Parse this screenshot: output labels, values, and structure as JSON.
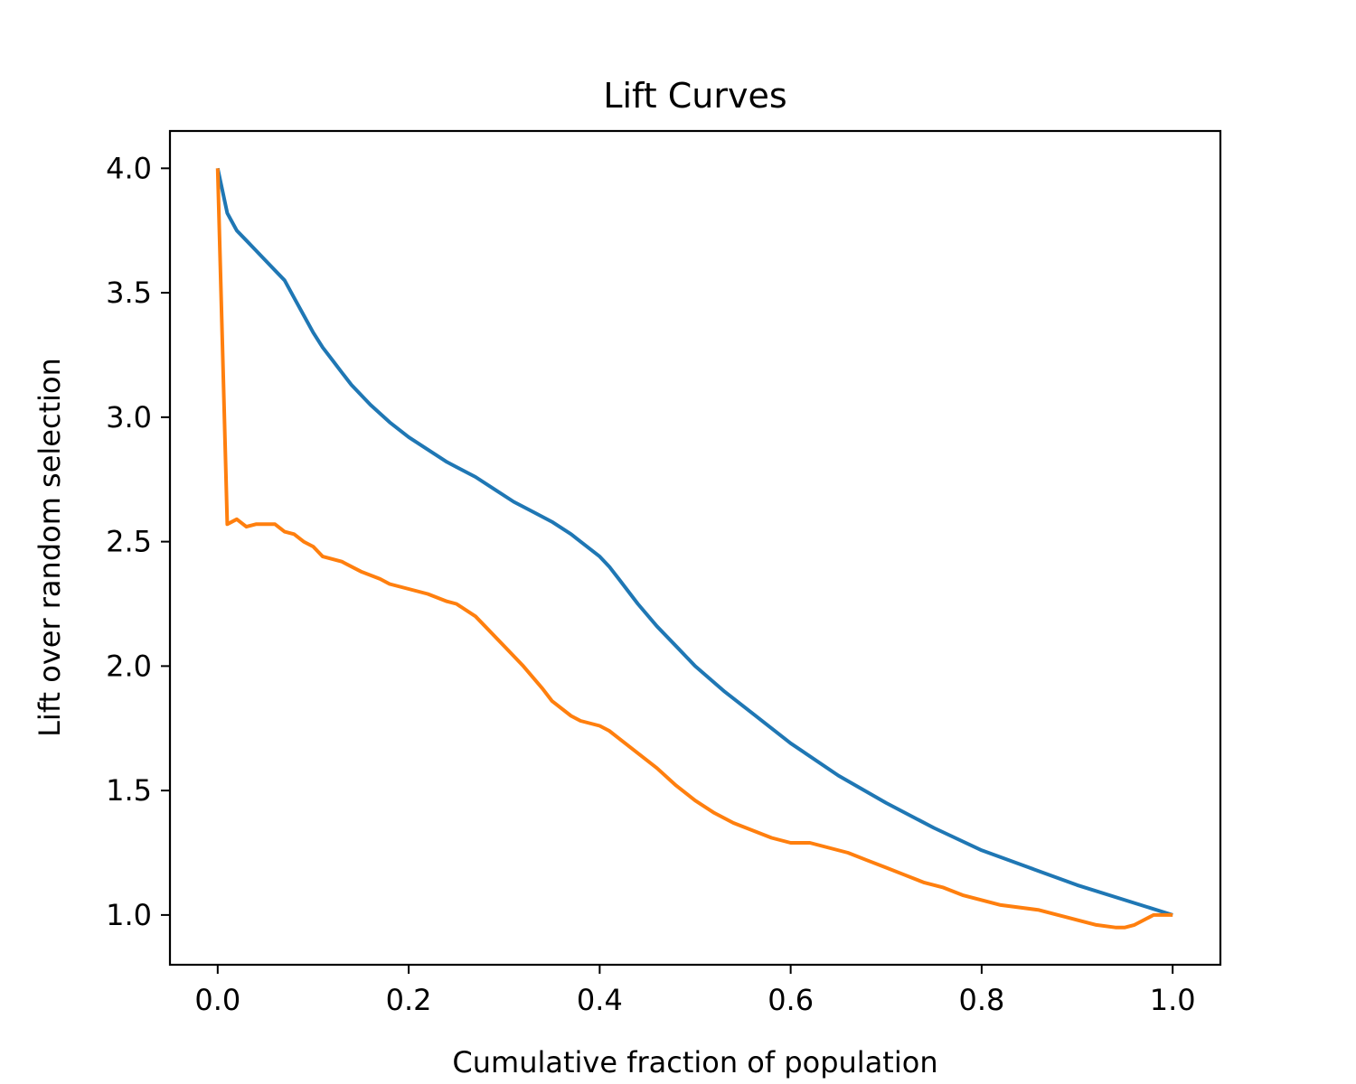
{
  "chart_data": {
    "type": "line",
    "title": "Lift Curves",
    "xlabel": "Cumulative fraction of population",
    "ylabel": "Lift over random selection",
    "xlim": [
      -0.05,
      1.05
    ],
    "ylim": [
      0.8,
      4.15
    ],
    "x_ticks": [
      0.0,
      0.2,
      0.4,
      0.6,
      0.8,
      1.0
    ],
    "x_tick_labels": [
      "0.0",
      "0.2",
      "0.4",
      "0.6",
      "0.8",
      "1.0"
    ],
    "y_ticks": [
      1.0,
      1.5,
      2.0,
      2.5,
      3.0,
      3.5,
      4.0
    ],
    "y_tick_labels": [
      "1.0",
      "1.5",
      "2.0",
      "2.5",
      "3.0",
      "3.5",
      "4.0"
    ],
    "grid": false,
    "legend": "none",
    "series": [
      {
        "color": "#1f77b4",
        "x": [
          0.0,
          0.01,
          0.02,
          0.03,
          0.04,
          0.05,
          0.06,
          0.07,
          0.08,
          0.09,
          0.1,
          0.11,
          0.12,
          0.13,
          0.14,
          0.15,
          0.16,
          0.18,
          0.2,
          0.22,
          0.24,
          0.25,
          0.27,
          0.29,
          0.31,
          0.33,
          0.35,
          0.37,
          0.38,
          0.4,
          0.41,
          0.42,
          0.44,
          0.46,
          0.48,
          0.5,
          0.53,
          0.56,
          0.6,
          0.65,
          0.7,
          0.75,
          0.8,
          0.85,
          0.9,
          0.95,
          1.0
        ],
        "y": [
          4.0,
          3.82,
          3.75,
          3.71,
          3.67,
          3.63,
          3.59,
          3.55,
          3.48,
          3.41,
          3.34,
          3.28,
          3.23,
          3.18,
          3.13,
          3.09,
          3.05,
          2.98,
          2.92,
          2.87,
          2.82,
          2.8,
          2.76,
          2.71,
          2.66,
          2.62,
          2.58,
          2.53,
          2.5,
          2.44,
          2.4,
          2.35,
          2.25,
          2.16,
          2.08,
          2.0,
          1.9,
          1.81,
          1.69,
          1.56,
          1.45,
          1.35,
          1.26,
          1.19,
          1.12,
          1.06,
          1.0
        ]
      },
      {
        "color": "#ff7f0e",
        "x": [
          0.0,
          0.01,
          0.02,
          0.03,
          0.04,
          0.05,
          0.06,
          0.07,
          0.08,
          0.09,
          0.1,
          0.11,
          0.13,
          0.15,
          0.17,
          0.18,
          0.2,
          0.22,
          0.24,
          0.25,
          0.27,
          0.28,
          0.3,
          0.32,
          0.34,
          0.35,
          0.37,
          0.38,
          0.4,
          0.41,
          0.42,
          0.44,
          0.46,
          0.48,
          0.5,
          0.52,
          0.54,
          0.56,
          0.58,
          0.6,
          0.62,
          0.64,
          0.66,
          0.68,
          0.7,
          0.72,
          0.74,
          0.76,
          0.78,
          0.8,
          0.82,
          0.84,
          0.86,
          0.88,
          0.9,
          0.92,
          0.94,
          0.95,
          0.96,
          0.98,
          0.99,
          1.0
        ],
        "y": [
          4.0,
          2.57,
          2.59,
          2.56,
          2.57,
          2.57,
          2.57,
          2.54,
          2.53,
          2.5,
          2.48,
          2.44,
          2.42,
          2.38,
          2.35,
          2.33,
          2.31,
          2.29,
          2.26,
          2.25,
          2.2,
          2.16,
          2.08,
          2.0,
          1.91,
          1.86,
          1.8,
          1.78,
          1.76,
          1.74,
          1.71,
          1.65,
          1.59,
          1.52,
          1.46,
          1.41,
          1.37,
          1.34,
          1.31,
          1.29,
          1.29,
          1.27,
          1.25,
          1.22,
          1.19,
          1.16,
          1.13,
          1.11,
          1.08,
          1.06,
          1.04,
          1.03,
          1.02,
          1.0,
          0.98,
          0.96,
          0.95,
          0.95,
          0.96,
          1.0,
          1.0,
          1.0
        ]
      }
    ]
  }
}
